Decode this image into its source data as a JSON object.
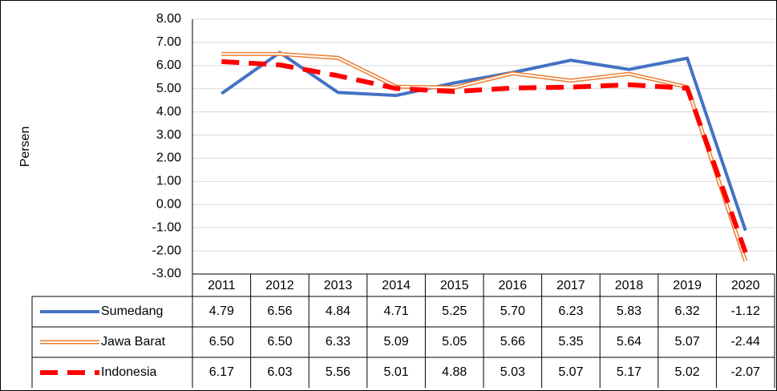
{
  "chart_data": {
    "type": "line",
    "y_label": "Persen",
    "categories": [
      "2011",
      "2012",
      "2013",
      "2014",
      "2015",
      "2016",
      "2017",
      "2018",
      "2019",
      "2020"
    ],
    "series": [
      {
        "name": "Sumedang",
        "color": "#4472c4",
        "style": "solid",
        "values": [
          4.79,
          6.56,
          4.84,
          4.71,
          5.25,
          5.7,
          6.23,
          5.83,
          6.32,
          -1.12
        ],
        "value_labels": [
          "4.79",
          "6.56",
          "4.84",
          "4.71",
          "5.25",
          "5.70",
          "6.23",
          "5.83",
          "6.32",
          "-1.12"
        ]
      },
      {
        "name": "Jawa Barat",
        "color": "#ed7d31",
        "style": "double",
        "values": [
          6.5,
          6.5,
          6.33,
          5.09,
          5.05,
          5.66,
          5.35,
          5.64,
          5.07,
          -2.44
        ],
        "value_labels": [
          "6.50",
          "6.50",
          "6.33",
          "5.09",
          "5.05",
          "5.66",
          "5.35",
          "5.64",
          "5.07",
          "-2.44"
        ]
      },
      {
        "name": "Indonesia",
        "color": "#ff0000",
        "style": "dashed",
        "values": [
          6.17,
          6.03,
          5.56,
          5.01,
          4.88,
          5.03,
          5.07,
          5.17,
          5.02,
          -2.07
        ],
        "value_labels": [
          "6.17",
          "6.03",
          "5.56",
          "5.01",
          "4.88",
          "5.03",
          "5.07",
          "5.17",
          "5.02",
          "-2.07"
        ]
      }
    ],
    "ylim": [
      -3,
      8
    ],
    "yticks": [
      {
        "value": -3,
        "label": "-3.00"
      },
      {
        "value": -2,
        "label": "-2.00"
      },
      {
        "value": -1,
        "label": "-1.00"
      },
      {
        "value": 0,
        "label": "0.00"
      },
      {
        "value": 1,
        "label": "1.00"
      },
      {
        "value": 2,
        "label": "2.00"
      },
      {
        "value": 3,
        "label": "3.00"
      },
      {
        "value": 4,
        "label": "4.00"
      },
      {
        "value": 5,
        "label": "5.00"
      },
      {
        "value": 6,
        "label": "6.00"
      },
      {
        "value": 7,
        "label": "7.00"
      },
      {
        "value": 8,
        "label": "8.00"
      }
    ],
    "grid": true
  }
}
